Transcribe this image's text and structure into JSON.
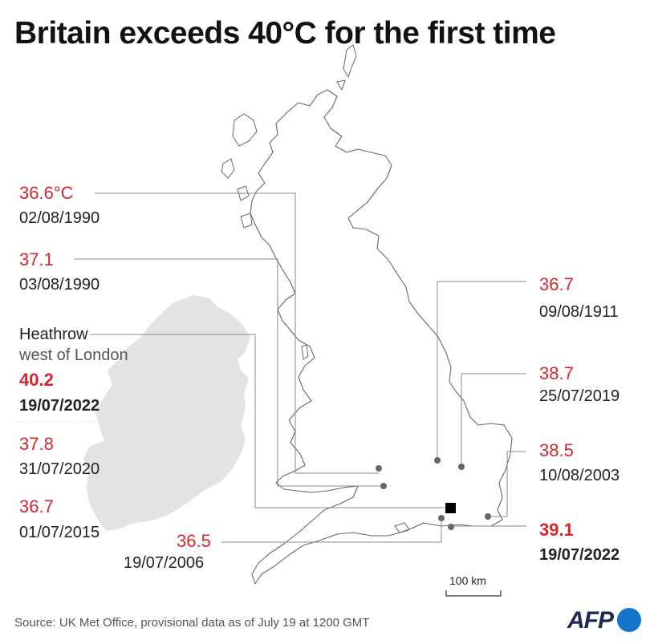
{
  "title": "Britain exceeds 40°C for the first time",
  "records": [
    {
      "temp": "36.6°C",
      "date": "02/08/1990"
    },
    {
      "temp": "37.1",
      "date": "03/08/1990"
    },
    {
      "place": "Heathrow",
      "place_detail": "west of London",
      "temp": "40.2",
      "date": "19/07/2022"
    },
    {
      "temp": "37.8",
      "date": "31/07/2020"
    },
    {
      "temp": "36.7",
      "date": "01/07/2015"
    },
    {
      "temp": "36.5",
      "date": "19/07/2006"
    },
    {
      "temp": "36.7",
      "date": "09/08/1911"
    },
    {
      "temp": "38.7",
      "date": "25/07/2019"
    },
    {
      "temp": "38.5",
      "date": "10/08/2003"
    },
    {
      "temp": "39.1",
      "date": "19/07/2022"
    }
  ],
  "scale_label": "100 km",
  "source": "Source: UK Met Office, provisional data as of July 19 at 1200 GMT",
  "logo_text": "AFP",
  "colors": {
    "record_temp": "#d7262e",
    "ireland_fill": "#e3e3e3",
    "coastline": "#666666",
    "leader_line": "#888888",
    "logo_navy": "#1b2a4e",
    "logo_blue": "#1273c9"
  },
  "icons": [
    "record-location-marker",
    "heathrow-marker"
  ]
}
